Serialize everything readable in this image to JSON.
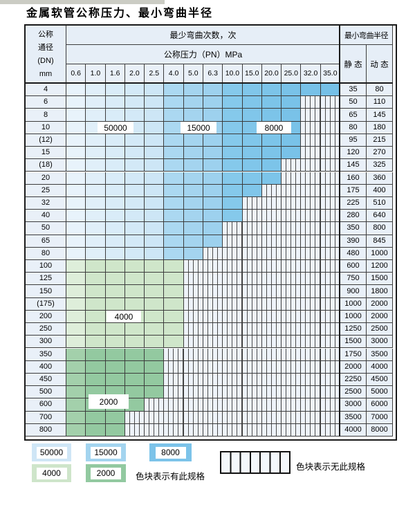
{
  "page": {
    "title": "金属软管公称压力、最小弯曲半径"
  },
  "table": {
    "corner_lines": [
      "公称",
      "通径",
      "(DN)",
      "mm"
    ],
    "bend_cycles_header": "最少弯曲次数，次",
    "pressure_header": "公称压力（PN）MPa",
    "radius_header": "最小弯曲半径",
    "static_header": "静 态",
    "dynamic_header": "动 态",
    "pressure_columns": [
      "0.6",
      "1.0",
      "1.6",
      "2.0",
      "2.5",
      "4.0",
      "5.0",
      "6.3",
      "10.0",
      "15.0",
      "20.0",
      "25.0",
      "32.0",
      "35.0"
    ],
    "rows": [
      {
        "dn": "4",
        "group": "blue",
        "max_pn": "35.0",
        "static_radius": "35",
        "dynamic_radius": "80"
      },
      {
        "dn": "6",
        "group": "blue",
        "max_pn": "25.0",
        "static_radius": "50",
        "dynamic_radius": "110"
      },
      {
        "dn": "8",
        "group": "blue",
        "max_pn": "25.0",
        "static_radius": "65",
        "dynamic_radius": "145"
      },
      {
        "dn": "10",
        "group": "blue",
        "max_pn": "25.0",
        "static_radius": "80",
        "dynamic_radius": "180"
      },
      {
        "dn": "(12)",
        "group": "blue",
        "max_pn": "25.0",
        "static_radius": "95",
        "dynamic_radius": "215"
      },
      {
        "dn": "15",
        "group": "blue",
        "max_pn": "25.0",
        "static_radius": "120",
        "dynamic_radius": "270"
      },
      {
        "dn": "(18)",
        "group": "blue",
        "max_pn": "20.0",
        "static_radius": "145",
        "dynamic_radius": "325"
      },
      {
        "dn": "20",
        "group": "blue",
        "max_pn": "20.0",
        "static_radius": "160",
        "dynamic_radius": "360"
      },
      {
        "dn": "25",
        "group": "blue",
        "max_pn": "15.0",
        "static_radius": "175",
        "dynamic_radius": "400"
      },
      {
        "dn": "32",
        "group": "blue",
        "max_pn": "10.0",
        "static_radius": "225",
        "dynamic_radius": "510"
      },
      {
        "dn": "40",
        "group": "blue",
        "max_pn": "10.0",
        "static_radius": "280",
        "dynamic_radius": "640"
      },
      {
        "dn": "50",
        "group": "blue",
        "max_pn": "6.3",
        "static_radius": "350",
        "dynamic_radius": "800"
      },
      {
        "dn": "65",
        "group": "blue",
        "max_pn": "6.3",
        "static_radius": "390",
        "dynamic_radius": "845"
      },
      {
        "dn": "80",
        "group": "blue",
        "max_pn": "5.0",
        "static_radius": "480",
        "dynamic_radius": "1000"
      },
      {
        "dn": "100",
        "group": "green",
        "cycles": "4000",
        "max_pn": "4.0",
        "static_radius": "600",
        "dynamic_radius": "1200"
      },
      {
        "dn": "125",
        "group": "green",
        "cycles": "4000",
        "max_pn": "4.0",
        "static_radius": "750",
        "dynamic_radius": "1500"
      },
      {
        "dn": "150",
        "group": "green",
        "cycles": "4000",
        "max_pn": "4.0",
        "static_radius": "900",
        "dynamic_radius": "1800"
      },
      {
        "dn": "(175)",
        "group": "green",
        "cycles": "4000",
        "max_pn": "4.0",
        "static_radius": "1000",
        "dynamic_radius": "2000"
      },
      {
        "dn": "200",
        "group": "green",
        "cycles": "4000",
        "max_pn": "4.0",
        "static_radius": "1000",
        "dynamic_radius": "2000"
      },
      {
        "dn": "250",
        "group": "green",
        "cycles": "4000",
        "max_pn": "4.0",
        "static_radius": "1250",
        "dynamic_radius": "2500"
      },
      {
        "dn": "300",
        "group": "green",
        "cycles": "4000",
        "max_pn": "4.0",
        "static_radius": "1500",
        "dynamic_radius": "3000"
      },
      {
        "dn": "350",
        "group": "green",
        "cycles": "2000",
        "max_pn": "2.5",
        "static_radius": "1750",
        "dynamic_radius": "3500"
      },
      {
        "dn": "400",
        "group": "green",
        "cycles": "2000",
        "max_pn": "2.5",
        "static_radius": "2000",
        "dynamic_radius": "4000"
      },
      {
        "dn": "450",
        "group": "green",
        "cycles": "2000",
        "max_pn": "2.5",
        "static_radius": "2250",
        "dynamic_radius": "4500"
      },
      {
        "dn": "500",
        "group": "green",
        "cycles": "2000",
        "max_pn": "2.5",
        "static_radius": "2500",
        "dynamic_radius": "5000"
      },
      {
        "dn": "600",
        "group": "green",
        "cycles": "2000",
        "max_pn": "2.0",
        "static_radius": "3000",
        "dynamic_radius": "6000"
      },
      {
        "dn": "700",
        "group": "green",
        "cycles": "2000",
        "max_pn": "1.6",
        "static_radius": "3500",
        "dynamic_radius": "7000"
      },
      {
        "dn": "800",
        "group": "green",
        "cycles": "2000",
        "max_pn": "1.6",
        "static_radius": "4000",
        "dynamic_radius": "8000"
      }
    ],
    "cycle_zones": {
      "blue_rows": [
        {
          "cycles": "50000",
          "pn_range": [
            "0.6",
            "2.5"
          ]
        },
        {
          "cycles": "15000",
          "pn_range": [
            "4.0",
            "6.3"
          ]
        },
        {
          "cycles": "8000",
          "pn_range": [
            "10.0",
            "35.0"
          ]
        }
      ],
      "green_rows": [
        {
          "cycles": "4000",
          "dn_range": [
            "100",
            "300"
          ]
        },
        {
          "cycles": "2000",
          "dn_range": [
            "350",
            "800"
          ]
        }
      ]
    },
    "zone_labels": [
      {
        "text": "50000",
        "at_dn": "10",
        "at_pn": "1.6-2.5"
      },
      {
        "text": "15000",
        "at_dn": "10",
        "at_pn": "5.0-6.3"
      },
      {
        "text": "8000",
        "at_dn": "10",
        "at_pn": "15.0-20.0"
      },
      {
        "text": "4000",
        "at_dn": "200",
        "at_pn": "1.6-2.0"
      },
      {
        "text": "2000",
        "at_dn": "600",
        "at_pn": "1.0-1.6"
      }
    ]
  },
  "legend": {
    "swatches": [
      {
        "label": "50000",
        "color": "#cfe6f6"
      },
      {
        "label": "15000",
        "color": "#a3d4ef"
      },
      {
        "label": "8000",
        "color": "#7cc3e9"
      },
      {
        "label": "4000",
        "color": "#cee5ca"
      },
      {
        "label": "2000",
        "color": "#92c9a0"
      }
    ],
    "has_spec_note": "色块表示有此规格",
    "no_spec_note": "色块表示无此规格"
  },
  "colors": {
    "header_bg": "#e6eef7",
    "row_label_bg": "#e9f0f8",
    "hatch_bg": "#eef3f9",
    "grid_line": "#3c3c3c"
  }
}
